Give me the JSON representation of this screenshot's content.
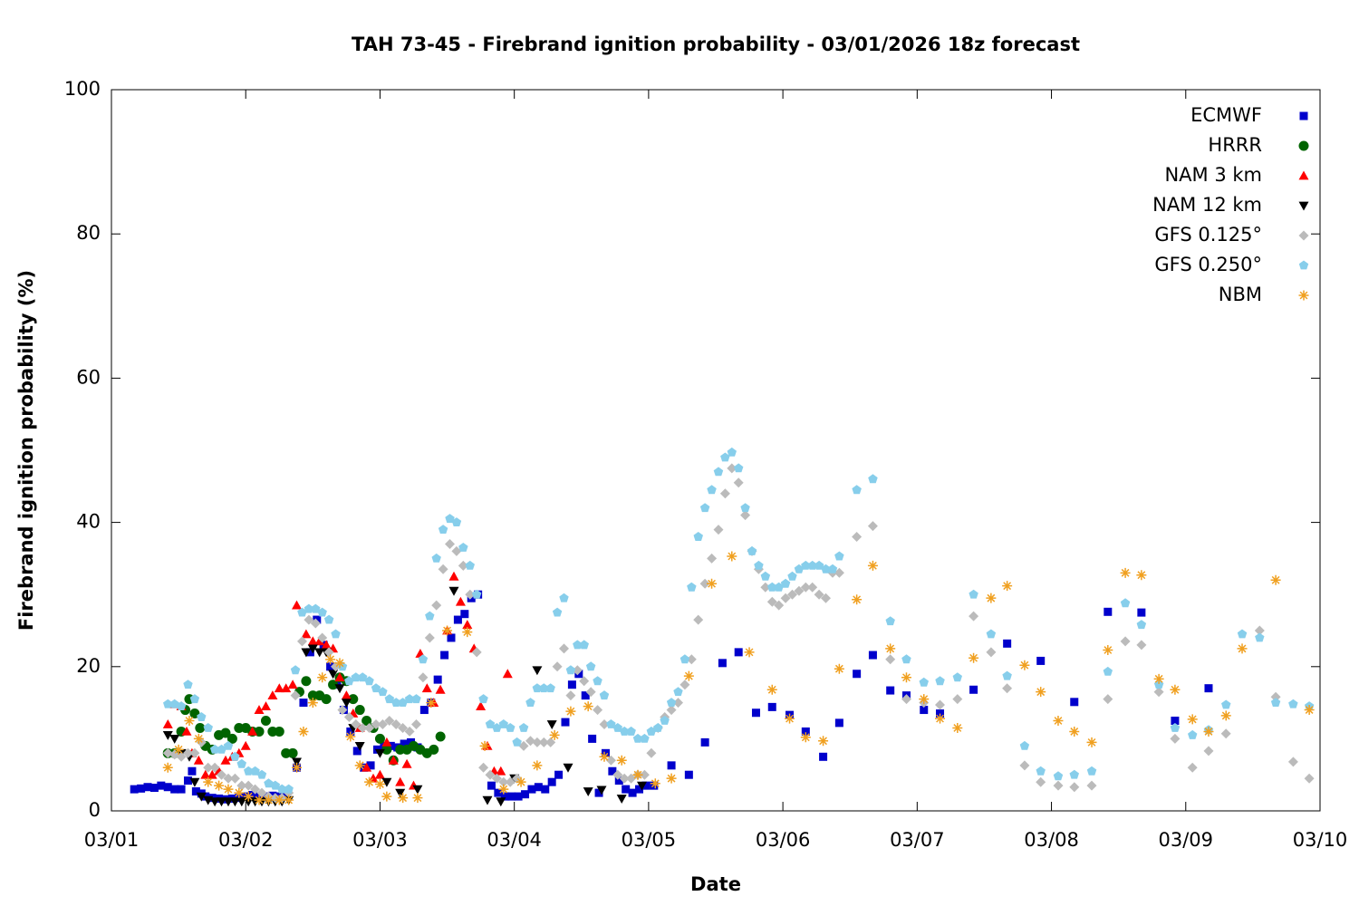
{
  "chart_data": {
    "type": "scatter",
    "title": "TAH 73-45 - Firebrand ignition probability - 03/01/2026 18z forecast",
    "xlabel": "Date",
    "ylabel": "Firebrand ignition probability (%)",
    "xlim": [
      0,
      9
    ],
    "ylim": [
      0,
      100
    ],
    "xticks": [
      {
        "value": 0,
        "label": "03/01"
      },
      {
        "value": 1,
        "label": "03/02"
      },
      {
        "value": 2,
        "label": "03/03"
      },
      {
        "value": 3,
        "label": "03/04"
      },
      {
        "value": 4,
        "label": "03/05"
      },
      {
        "value": 5,
        "label": "03/06"
      },
      {
        "value": 6,
        "label": "03/07"
      },
      {
        "value": 7,
        "label": "03/08"
      },
      {
        "value": 8,
        "label": "03/09"
      },
      {
        "value": 9,
        "label": "03/10"
      }
    ],
    "yticks": [
      0,
      20,
      40,
      60,
      80,
      100
    ],
    "legend": "upper right",
    "series": [
      {
        "name": "ECMWF",
        "color": "#0000cc",
        "marker": "square",
        "x": [
          0.17,
          0.22,
          0.27,
          0.32,
          0.37,
          0.42,
          0.47,
          0.52,
          0.57,
          0.6,
          0.63,
          0.67,
          0.7,
          0.75,
          0.8,
          0.85,
          0.9,
          0.95,
          1.0,
          1.05,
          1.1,
          1.15,
          1.2,
          1.25,
          1.3,
          1.38,
          1.43,
          1.48,
          1.53,
          1.58,
          1.63,
          1.68,
          1.73,
          1.78,
          1.83,
          1.88,
          1.93,
          1.98,
          2.03,
          2.08,
          2.13,
          2.18,
          2.23,
          2.28,
          2.33,
          2.38,
          2.43,
          2.48,
          2.53,
          2.58,
          2.63,
          2.68,
          2.73,
          2.83,
          2.88,
          2.93,
          2.98,
          3.03,
          3.08,
          3.13,
          3.18,
          3.23,
          3.28,
          3.33,
          3.38,
          3.43,
          3.48,
          3.53,
          3.58,
          3.63,
          3.68,
          3.73,
          3.78,
          3.83,
          3.88,
          3.93,
          3.98,
          4.04,
          4.17,
          4.3,
          4.42,
          4.55,
          4.67,
          4.8,
          4.92,
          5.05,
          5.17,
          5.3,
          5.42,
          5.55,
          5.67,
          5.8,
          5.92,
          6.05,
          6.17,
          6.42,
          6.67,
          6.92,
          7.17,
          7.42,
          7.67,
          7.92,
          8.17
        ],
        "values": [
          3,
          3.1,
          3.3,
          3.2,
          3.5,
          3.3,
          3,
          3,
          4.2,
          5.5,
          2.7,
          2.4,
          2,
          1.8,
          1.7,
          1.6,
          1.7,
          1.8,
          2,
          2.2,
          2,
          2,
          2.1,
          2,
          2.3,
          6,
          15,
          22,
          26.5,
          23,
          20,
          17.5,
          14,
          11,
          8.3,
          6,
          6.3,
          8.5,
          9,
          9,
          8.8,
          9.3,
          9.5,
          8.8,
          14,
          15,
          18.2,
          21.6,
          24,
          26.5,
          27.3,
          29.5,
          30,
          3.5,
          2.5,
          2,
          2,
          2,
          2.3,
          3,
          3.3,
          3,
          4,
          5,
          12.3,
          17.5,
          19,
          16,
          10,
          2.5,
          8,
          5.5,
          4.2,
          3,
          2.5,
          3,
          3.5,
          3.5,
          6.3,
          5,
          9.5,
          20.5,
          22,
          13.6,
          14.4,
          13.3,
          11,
          7.5,
          12.2,
          19,
          21.6,
          16.7,
          16,
          14,
          13.5,
          16.8,
          23.2,
          20.8,
          15.1,
          27.6,
          27.5,
          12.5,
          17
        ]
      },
      {
        "name": "HRRR",
        "color": "#006400",
        "marker": "circle",
        "x": [
          0.42,
          0.47,
          0.52,
          0.55,
          0.58,
          0.62,
          0.66,
          0.7,
          0.75,
          0.8,
          0.85,
          0.9,
          0.95,
          1.0,
          1.05,
          1.1,
          1.15,
          1.2,
          1.25,
          1.3,
          1.35,
          1.4,
          1.45,
          1.5,
          1.55,
          1.6,
          1.65,
          1.7,
          1.75,
          1.8,
          1.85,
          1.9,
          1.95,
          2.0,
          2.05,
          2.1,
          2.15,
          2.2,
          2.25,
          2.3,
          2.35,
          2.4,
          2.45
        ],
        "values": [
          8,
          8,
          11,
          14,
          15.5,
          13.5,
          11.5,
          9,
          8.5,
          10.5,
          10.8,
          10,
          11.5,
          11.5,
          11,
          11,
          12.5,
          11,
          11,
          8,
          8,
          16.5,
          18,
          16,
          16,
          15.5,
          17.5,
          18.5,
          18,
          15.5,
          14,
          12.5,
          11.5,
          10,
          8.5,
          7,
          8.5,
          8.5,
          9,
          8.5,
          8,
          8.5,
          10.3
        ]
      },
      {
        "name": "NAM 3 km",
        "color": "#ff0000",
        "marker": "triangle-up",
        "x": [
          0.42,
          0.47,
          0.52,
          0.56,
          0.6,
          0.65,
          0.7,
          0.75,
          0.8,
          0.85,
          0.9,
          0.95,
          1.0,
          1.05,
          1.1,
          1.15,
          1.2,
          1.25,
          1.3,
          1.35,
          1.38,
          1.45,
          1.5,
          1.55,
          1.6,
          1.65,
          1.7,
          1.75,
          1.8,
          1.85,
          1.9,
          1.95,
          2.0,
          2.05,
          2.1,
          2.15,
          2.2,
          2.25,
          2.3,
          2.35,
          2.4,
          2.45,
          2.5,
          2.55,
          2.6,
          2.65,
          2.7,
          2.75,
          2.8,
          2.85,
          2.9,
          2.95
        ],
        "values": [
          12,
          14.8,
          14.5,
          11,
          8,
          7,
          5,
          5,
          5.5,
          7,
          7.5,
          8,
          9,
          11,
          14,
          14.5,
          16,
          17,
          17,
          17.5,
          28.5,
          24.5,
          23.5,
          23.5,
          23,
          22.5,
          18.5,
          16,
          13.5,
          11.5,
          6,
          4.5,
          5,
          9.5,
          7,
          4,
          6.5,
          3.5,
          21.8,
          17,
          15,
          16.8,
          25,
          32.5,
          29,
          25.8,
          22.5,
          14.5,
          9,
          5.5,
          5.5,
          19
        ]
      },
      {
        "name": "NAM 12 km",
        "color": "#000000",
        "marker": "triangle-down",
        "x": [
          0.42,
          0.47,
          0.52,
          0.58,
          0.62,
          0.67,
          0.72,
          0.77,
          0.82,
          0.87,
          0.92,
          0.97,
          1.02,
          1.07,
          1.12,
          1.17,
          1.22,
          1.27,
          1.32,
          1.38,
          1.45,
          1.5,
          1.55,
          1.6,
          1.65,
          1.7,
          1.75,
          1.8,
          1.85,
          2.0,
          2.05,
          2.15,
          2.28,
          2.55,
          2.8,
          2.9,
          3.0,
          3.17,
          3.28,
          3.4,
          3.55,
          3.65,
          3.8,
          3.95
        ],
        "values": [
          10.5,
          10,
          8,
          7.5,
          4,
          2,
          1.5,
          1.3,
          1.3,
          1.3,
          1.3,
          1.3,
          1.3,
          1.3,
          1.3,
          1.3,
          1.3,
          1.3,
          1.5,
          6.8,
          22,
          22.5,
          22,
          22,
          19,
          17,
          15,
          11.5,
          9,
          8,
          4,
          2.5,
          3,
          30.5,
          1.5,
          1.3,
          4.5,
          19.5,
          12,
          6,
          2.7,
          2.9,
          1.7,
          3.5
        ]
      },
      {
        "name": "GFS 0.125°",
        "color": "#bbbbbb",
        "marker": "diamond",
        "x": [
          0.42,
          0.47,
          0.52,
          0.57,
          0.62,
          0.67,
          0.72,
          0.77,
          0.82,
          0.87,
          0.92,
          0.97,
          1.02,
          1.07,
          1.12,
          1.17,
          1.22,
          1.27,
          1.32,
          1.37,
          1.42,
          1.47,
          1.52,
          1.57,
          1.62,
          1.67,
          1.72,
          1.77,
          1.82,
          1.87,
          1.92,
          1.97,
          2.02,
          2.07,
          2.12,
          2.17,
          2.22,
          2.27,
          2.32,
          2.37,
          2.42,
          2.47,
          2.52,
          2.57,
          2.62,
          2.67,
          2.72,
          2.77,
          2.82,
          2.87,
          2.92,
          2.97,
          3.02,
          3.07,
          3.12,
          3.17,
          3.22,
          3.27,
          3.32,
          3.37,
          3.42,
          3.47,
          3.52,
          3.57,
          3.62,
          3.67,
          3.72,
          3.77,
          3.82,
          3.87,
          3.92,
          3.97,
          4.02,
          4.07,
          4.12,
          4.17,
          4.22,
          4.27,
          4.32,
          4.37,
          4.42,
          4.47,
          4.52,
          4.57,
          4.62,
          4.67,
          4.72,
          4.77,
          4.82,
          4.87,
          4.92,
          4.97,
          5.02,
          5.07,
          5.12,
          5.17,
          5.22,
          5.27,
          5.32,
          5.37,
          5.42,
          5.55,
          5.67,
          5.8,
          5.92,
          6.05,
          6.17,
          6.3,
          6.42,
          6.55,
          6.67,
          6.8,
          6.92,
          7.05,
          7.17,
          7.3,
          7.42,
          7.55,
          7.67,
          7.8,
          7.92,
          8.05,
          8.17,
          8.3,
          8.55,
          8.67,
          8.8,
          8.92
        ],
        "values": [
          8,
          7.8,
          7.5,
          8,
          8,
          9.5,
          6,
          6,
          5,
          4.5,
          4.5,
          3.5,
          3.5,
          3,
          2.5,
          2,
          1.8,
          1.8,
          2.5,
          16,
          23.5,
          26.5,
          26,
          24,
          22,
          20,
          14,
          13,
          12,
          11.5,
          11.5,
          12,
          12,
          12.5,
          12,
          11.5,
          11,
          12,
          18.5,
          24,
          28.5,
          33.5,
          37,
          36,
          34,
          30,
          22,
          6,
          5,
          4.5,
          4,
          4,
          4.5,
          9,
          9.7,
          9.5,
          9.5,
          9.5,
          20,
          22.5,
          16,
          19.5,
          18,
          16.5,
          14,
          12,
          7,
          5,
          4.5,
          4.5,
          5,
          5,
          8,
          11.5,
          13,
          14,
          15,
          17.5,
          21,
          26.5,
          31.5,
          35,
          39,
          44,
          47.5,
          45.5,
          41,
          36,
          33.5,
          31,
          29,
          28.5,
          29.5,
          30,
          30.5,
          31,
          31,
          30,
          29.5,
          33,
          33,
          38,
          39.5,
          21,
          15.5,
          15,
          14.7,
          15.5,
          27,
          22,
          17,
          6.3,
          4,
          3.5,
          3.3,
          3.5,
          15.5,
          23.5,
          23,
          16.5,
          10,
          6,
          8.3,
          10.7,
          25,
          15.8,
          6.8,
          4.5
        ]
      },
      {
        "name": "GFS 0.250°",
        "color": "#87ceeb",
        "marker": "pentagon",
        "x": [
          0.42,
          0.47,
          0.52,
          0.57,
          0.62,
          0.67,
          0.72,
          0.77,
          0.82,
          0.87,
          0.92,
          0.97,
          1.02,
          1.07,
          1.12,
          1.17,
          1.22,
          1.27,
          1.32,
          1.37,
          1.42,
          1.47,
          1.52,
          1.57,
          1.62,
          1.67,
          1.72,
          1.77,
          1.82,
          1.87,
          1.92,
          1.97,
          2.02,
          2.07,
          2.12,
          2.17,
          2.22,
          2.27,
          2.32,
          2.37,
          2.42,
          2.47,
          2.52,
          2.57,
          2.62,
          2.67,
          2.72,
          2.77,
          2.82,
          2.87,
          2.92,
          2.97,
          3.02,
          3.07,
          3.12,
          3.17,
          3.22,
          3.27,
          3.32,
          3.37,
          3.42,
          3.47,
          3.52,
          3.57,
          3.62,
          3.67,
          3.72,
          3.77,
          3.82,
          3.87,
          3.92,
          3.97,
          4.02,
          4.07,
          4.12,
          4.17,
          4.22,
          4.27,
          4.32,
          4.37,
          4.42,
          4.47,
          4.52,
          4.57,
          4.62,
          4.67,
          4.72,
          4.77,
          4.82,
          4.87,
          4.92,
          4.97,
          5.02,
          5.07,
          5.12,
          5.17,
          5.22,
          5.27,
          5.32,
          5.37,
          5.42,
          5.55,
          5.67,
          5.8,
          5.92,
          6.05,
          6.17,
          6.3,
          6.42,
          6.55,
          6.67,
          6.8,
          6.92,
          7.05,
          7.17,
          7.3,
          7.42,
          7.55,
          7.67,
          7.8,
          7.92,
          8.05,
          8.17,
          8.3,
          8.42,
          8.55,
          8.67,
          8.8,
          8.92
        ],
        "values": [
          14.8,
          14.8,
          14.5,
          17.5,
          15.5,
          13,
          11.5,
          8.5,
          8.5,
          9,
          7.5,
          6.5,
          5.5,
          5.5,
          5,
          3.8,
          3.5,
          3,
          3,
          19.5,
          27.5,
          28,
          28,
          27.5,
          26.5,
          24.5,
          20,
          18,
          18.5,
          18.5,
          18,
          17,
          16.5,
          15.5,
          15,
          15,
          15.5,
          15.5,
          21,
          27,
          35,
          39,
          40.5,
          40,
          36.5,
          34,
          30,
          15.5,
          12,
          11.5,
          12,
          11.5,
          9.5,
          11.5,
          15,
          17,
          17,
          17,
          27.5,
          29.5,
          19.5,
          23,
          23,
          20,
          18,
          16,
          12,
          11.5,
          11,
          11,
          10,
          10,
          11,
          11.5,
          12.5,
          15,
          16.5,
          21,
          31,
          38,
          42,
          44.5,
          47,
          49,
          49.7,
          47.5,
          42,
          36,
          34,
          32.5,
          31,
          31,
          31.5,
          32.5,
          33.5,
          34,
          34,
          34,
          33.5,
          33.5,
          35.3,
          44.5,
          46,
          26.3,
          21,
          17.8,
          18,
          18.5,
          30,
          24.5,
          18.7,
          9,
          5.5,
          4.8,
          5,
          5.5,
          19.3,
          28.8,
          25.8,
          17.5,
          11.5,
          10.5,
          11.2,
          14.7,
          24.5,
          24,
          15,
          14.8,
          14.5
        ]
      },
      {
        "name": "NBM",
        "color": "#f0a020",
        "marker": "star",
        "x": [
          0.42,
          0.5,
          0.58,
          0.65,
          0.72,
          0.8,
          0.87,
          0.95,
          1.02,
          1.1,
          1.17,
          1.25,
          1.32,
          1.38,
          1.43,
          1.5,
          1.57,
          1.63,
          1.7,
          1.78,
          1.85,
          1.92,
          2.0,
          2.05,
          2.17,
          2.28,
          2.38,
          2.5,
          2.65,
          2.78,
          2.92,
          3.05,
          3.17,
          3.3,
          3.42,
          3.55,
          3.67,
          3.8,
          3.92,
          4.05,
          4.17,
          4.3,
          4.47,
          4.62,
          4.75,
          4.92,
          5.05,
          5.17,
          5.3,
          5.42,
          5.55,
          5.67,
          5.8,
          5.92,
          6.05,
          6.17,
          6.3,
          6.42,
          6.55,
          6.67,
          6.8,
          6.92,
          7.05,
          7.17,
          7.3,
          7.42,
          7.55,
          7.67,
          7.8,
          7.92,
          8.05,
          8.17,
          8.3,
          8.42,
          8.67,
          8.92
        ],
        "values": [
          6,
          8.5,
          12.5,
          10,
          4,
          3.5,
          3,
          2.5,
          2,
          1.5,
          1.5,
          1.5,
          1.5,
          6,
          11,
          15,
          18.5,
          21,
          20.5,
          10.3,
          6.3,
          4,
          3.7,
          2,
          1.8,
          1.8,
          15,
          25,
          24.8,
          9,
          3,
          4,
          6.3,
          10.5,
          13.8,
          14.5,
          7.5,
          7,
          5,
          3.8,
          4.5,
          18.7,
          31.5,
          35.3,
          22,
          16.8,
          12.8,
          10.2,
          9.7,
          19.7,
          29.3,
          34,
          22.5,
          18.5,
          15.5,
          12.8,
          11.5,
          21.2,
          29.5,
          31.2,
          20.2,
          16.5,
          12.5,
          11,
          9.5,
          22.3,
          33,
          32.7,
          18.3,
          16.8,
          12.7,
          11,
          13.2,
          22.5,
          32,
          14
        ]
      }
    ]
  }
}
